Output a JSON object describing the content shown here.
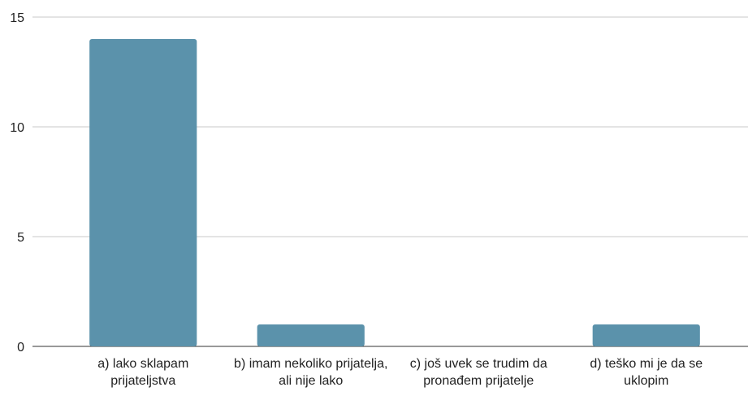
{
  "chart_data": {
    "type": "bar",
    "categories": [
      "a) lako sklapam prijateljstva",
      "b) imam nekoliko prijatelja, ali nije lako",
      "c) još uvek se trudim da pronađem prijatelje",
      "d) teško mi je da se uklopim"
    ],
    "values": [
      14,
      1,
      0,
      1
    ],
    "color": "#5b92ab",
    "ylim": [
      0,
      15
    ],
    "yticks": [
      0,
      5,
      10,
      15
    ],
    "grid": true
  }
}
